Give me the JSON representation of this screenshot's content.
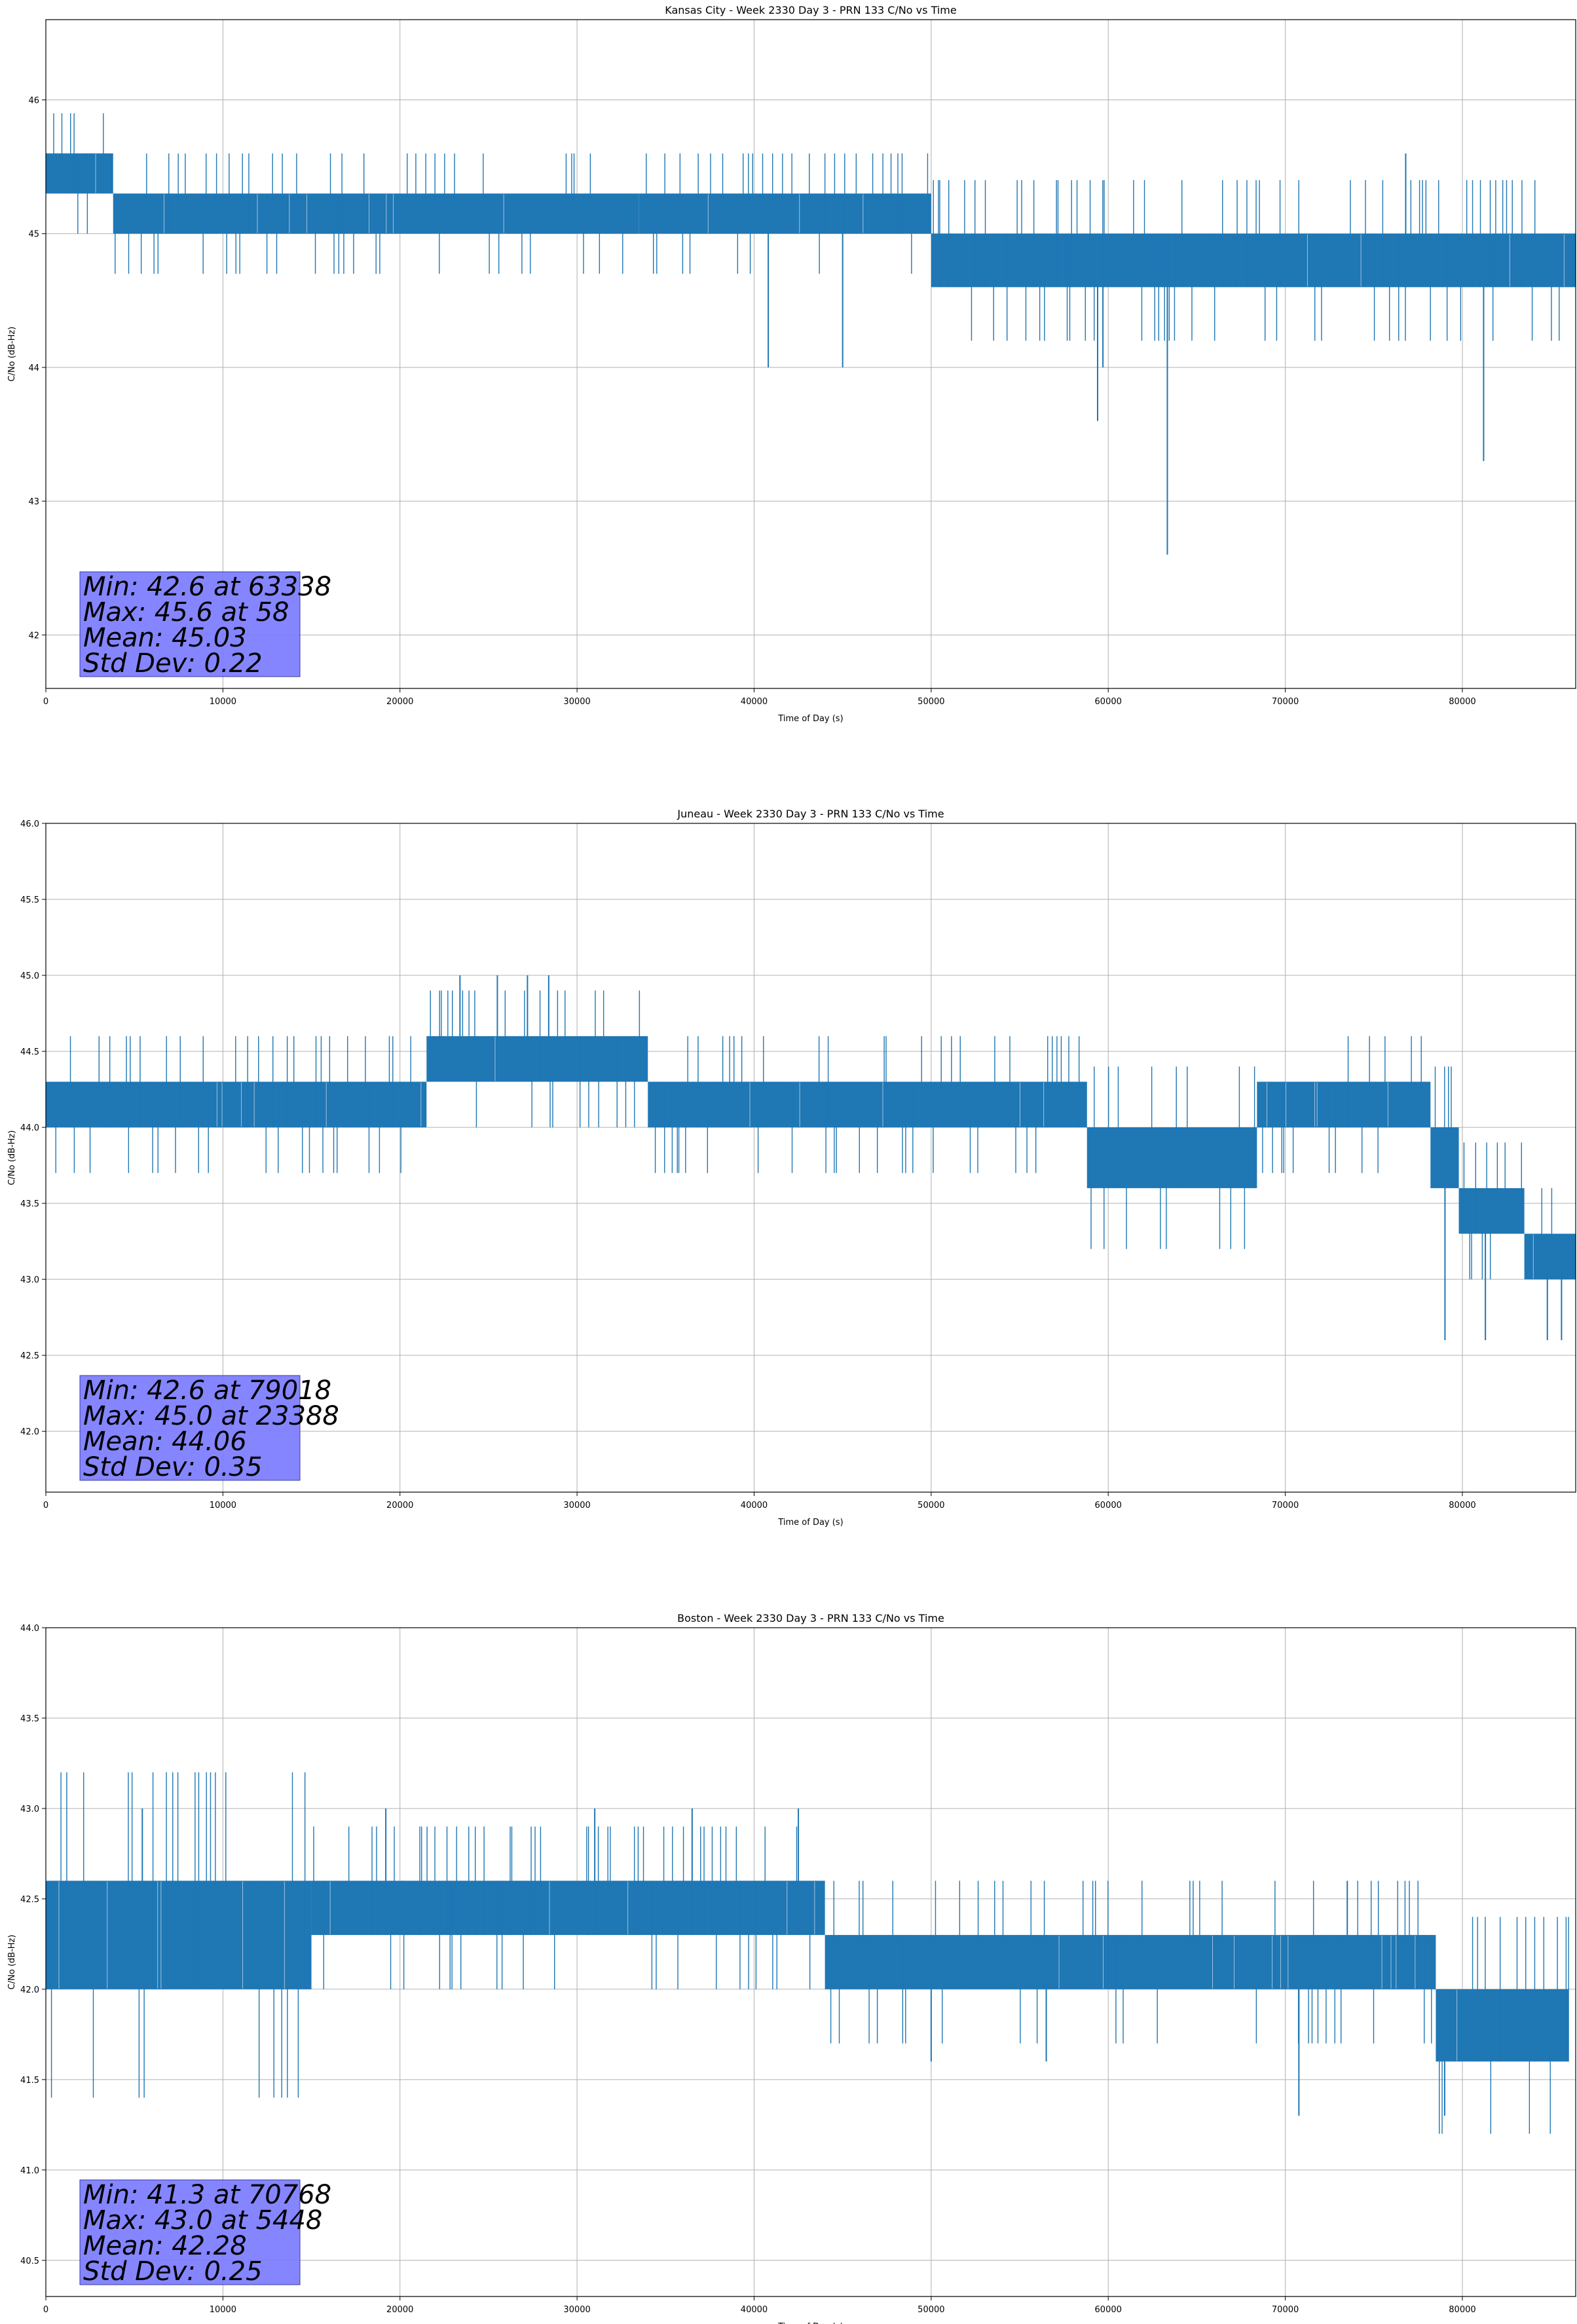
{
  "chart_data": [
    {
      "type": "line",
      "title": "Kansas City - Week 2330 Day 3 - PRN 133 C/No vs Time",
      "xlabel": "Time of Day (s)",
      "ylabel": "C/No (dB-Hz)",
      "xlim": [
        0,
        86400
      ],
      "ylim": [
        41.6,
        46.6
      ],
      "xticks": [
        0,
        10000,
        20000,
        30000,
        40000,
        50000,
        60000,
        70000,
        80000
      ],
      "xtick_labels": [
        "0",
        "10000",
        "20000",
        "30000",
        "40000",
        "50000",
        "60000",
        "70000",
        "80000"
      ],
      "yticks": [
        42,
        43,
        44,
        45,
        46
      ],
      "ytick_labels": [
        "42",
        "43",
        "44",
        "45",
        "46"
      ],
      "grid": true,
      "series_color": "#1f77b4",
      "levels": [
        {
          "x": [
            0,
            3800
          ],
          "lo": 45.3,
          "hi": 45.6
        },
        {
          "x": [
            3800,
            33500
          ],
          "lo": 45.0,
          "hi": 45.3
        },
        {
          "x": [
            33500,
            50000
          ],
          "lo": 45.0,
          "hi": 45.3
        },
        {
          "x": [
            50000,
            86400
          ],
          "lo": 44.6,
          "hi": 45.0
        }
      ],
      "dips": [
        {
          "x": 63338,
          "y": 42.6
        },
        {
          "x": 81200,
          "y": 43.3
        },
        {
          "x": 59400,
          "y": 43.6
        },
        {
          "x": 40800,
          "y": 44.0
        },
        {
          "x": 45000,
          "y": 44.0
        },
        {
          "x": 59700,
          "y": 44.0
        }
      ],
      "peaks": [
        {
          "x": 58,
          "y": 45.6
        },
        {
          "x": 76800,
          "y": 45.6
        }
      ],
      "stats": [
        "Min: 42.6 at 63338",
        "Max: 45.6 at 58",
        "Mean: 45.03",
        "Std Dev: 0.22"
      ]
    },
    {
      "type": "line",
      "title": "Juneau - Week 2330 Day 3 - PRN 133 C/No vs Time",
      "xlabel": "Time of Day (s)",
      "ylabel": "C/No (dB-Hz)",
      "xlim": [
        0,
        86400
      ],
      "ylim": [
        41.6,
        46.0
      ],
      "xticks": [
        0,
        10000,
        20000,
        30000,
        40000,
        50000,
        60000,
        70000,
        80000
      ],
      "xtick_labels": [
        "0",
        "10000",
        "20000",
        "30000",
        "40000",
        "50000",
        "60000",
        "70000",
        "80000"
      ],
      "yticks": [
        42.0,
        42.5,
        43.0,
        43.5,
        44.0,
        44.5,
        45.0,
        45.5,
        46.0
      ],
      "ytick_labels": [
        "42.0",
        "42.5",
        "43.0",
        "43.5",
        "44.0",
        "44.5",
        "45.0",
        "45.5",
        "46.0"
      ],
      "grid": true,
      "series_color": "#1f77b4",
      "levels": [
        {
          "x": [
            0,
            21500
          ],
          "lo": 44.0,
          "hi": 44.3
        },
        {
          "x": [
            21500,
            34000
          ],
          "lo": 44.3,
          "hi": 44.6
        },
        {
          "x": [
            34000,
            58800
          ],
          "lo": 44.0,
          "hi": 44.3
        },
        {
          "x": [
            58800,
            68400
          ],
          "lo": 43.6,
          "hi": 44.0
        },
        {
          "x": [
            68400,
            78200
          ],
          "lo": 44.0,
          "hi": 44.3
        },
        {
          "x": [
            78200,
            79800
          ],
          "lo": 43.6,
          "hi": 44.0
        },
        {
          "x": [
            79800,
            83500
          ],
          "lo": 43.3,
          "hi": 43.6
        },
        {
          "x": [
            83500,
            86400
          ],
          "lo": 43.0,
          "hi": 43.3
        }
      ],
      "dips": [
        {
          "x": 79018,
          "y": 42.6
        },
        {
          "x": 81300,
          "y": 42.6
        },
        {
          "x": 84800,
          "y": 42.6
        },
        {
          "x": 85600,
          "y": 42.6
        }
      ],
      "peaks": [
        {
          "x": 23388,
          "y": 45.0
        },
        {
          "x": 25500,
          "y": 45.0
        },
        {
          "x": 27200,
          "y": 45.0
        },
        {
          "x": 28400,
          "y": 45.0
        }
      ],
      "stats": [
        "Min: 42.6 at 79018",
        "Max: 45.0 at 23388",
        "Mean: 44.06",
        "Std Dev: 0.35"
      ]
    },
    {
      "type": "line",
      "title": "Boston - Week 2330 Day 3 - PRN 133 C/No vs Time",
      "xlabel": "Time of Day (s)",
      "ylabel": "C/No (dB-Hz)",
      "xlim": [
        0,
        86400
      ],
      "ylim": [
        40.3,
        44.0
      ],
      "xticks": [
        0,
        10000,
        20000,
        30000,
        40000,
        50000,
        60000,
        70000,
        80000
      ],
      "xtick_labels": [
        "0",
        "10000",
        "20000",
        "30000",
        "40000",
        "50000",
        "60000",
        "70000",
        "80000"
      ],
      "yticks": [
        40.5,
        41.0,
        41.5,
        42.0,
        42.5,
        43.0,
        43.5,
        44.0
      ],
      "ytick_labels": [
        "40.5",
        "41.0",
        "41.5",
        "42.0",
        "42.5",
        "43.0",
        "43.5",
        "44.0"
      ],
      "grid": true,
      "series_color": "#1f77b4",
      "levels": [
        {
          "x": [
            0,
            15000
          ],
          "lo": 42.0,
          "hi": 42.6
        },
        {
          "x": [
            15000,
            44000
          ],
          "lo": 42.3,
          "hi": 42.6
        },
        {
          "x": [
            44000,
            78500
          ],
          "lo": 42.0,
          "hi": 42.3
        },
        {
          "x": [
            78500,
            86000
          ],
          "lo": 41.6,
          "hi": 42.0
        }
      ],
      "dips": [
        {
          "x": 70768,
          "y": 41.3
        },
        {
          "x": 79000,
          "y": 41.3
        },
        {
          "x": 50000,
          "y": 41.6
        },
        {
          "x": 56500,
          "y": 41.6
        }
      ],
      "peaks": [
        {
          "x": 5448,
          "y": 43.0
        },
        {
          "x": 19200,
          "y": 43.0
        },
        {
          "x": 31000,
          "y": 43.0
        },
        {
          "x": 36500,
          "y": 43.0
        },
        {
          "x": 42500,
          "y": 43.0
        },
        {
          "x": 73500,
          "y": 42.6
        }
      ],
      "stats": [
        "Min: 41.3 at 70768",
        "Max: 43.0 at 5448",
        "Mean: 42.28",
        "Std Dev: 0.25"
      ]
    }
  ]
}
